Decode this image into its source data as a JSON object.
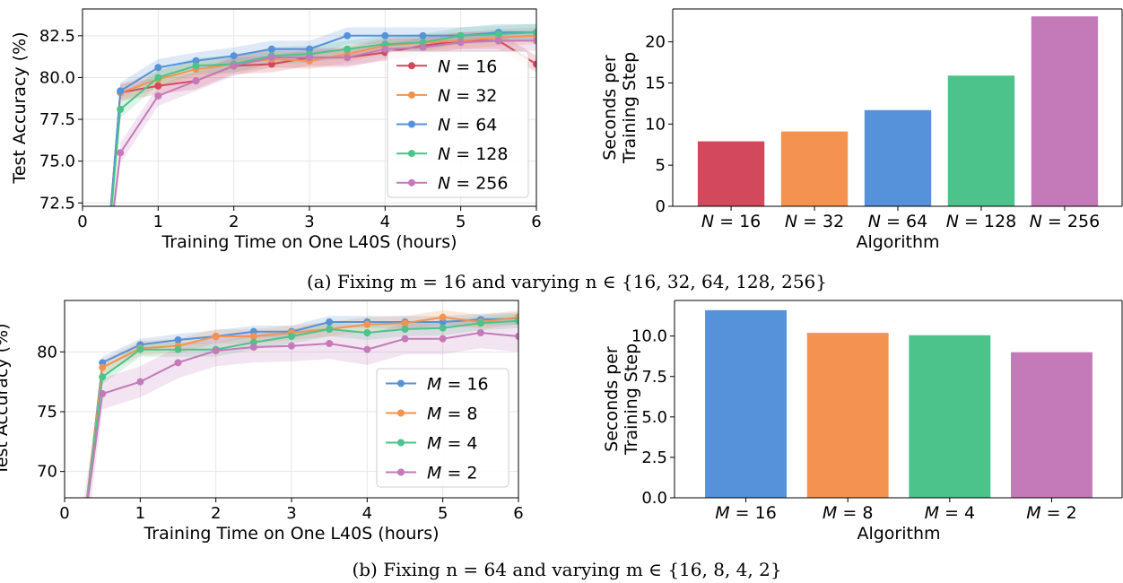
{
  "captions": {
    "a": "(a) Fixing m = 16 and varying n ∈ {16, 32, 64, 128, 256}",
    "b": "(b) Fixing n = 64 and varying m ∈ {16, 8, 4, 2}"
  },
  "chart_data": [
    {
      "id": "a-line",
      "type": "line",
      "xlabel": "Training Time on One L40S (hours)",
      "ylabel": "Test Accuracy (%)",
      "xlim": [
        0,
        6
      ],
      "ylim": [
        72.3,
        84.1
      ],
      "xticks": [
        0,
        1,
        2,
        3,
        4,
        5,
        6
      ],
      "yticks": [
        72.5,
        75.0,
        77.5,
        80.0,
        82.5
      ],
      "ytick_labels": [
        "72.5",
        "75.0",
        "77.5",
        "80.0",
        "82.5"
      ],
      "grid": true,
      "legend": "right",
      "x": [
        0.3,
        0.5,
        1.0,
        1.5,
        2.0,
        2.5,
        3.0,
        3.5,
        4.0,
        4.5,
        5.0,
        5.5,
        6.0
      ],
      "series": [
        {
          "name": "N = 16",
          "color": "#d1495b",
          "values": [
            68.0,
            79.1,
            79.5,
            79.8,
            80.7,
            80.8,
            81.2,
            81.2,
            81.5,
            81.9,
            82.2,
            82.2,
            80.8
          ],
          "band": 0.5
        },
        {
          "name": "N = 32",
          "color": "#f4934f",
          "values": [
            68.0,
            79.1,
            79.9,
            80.5,
            80.8,
            81.1,
            81.0,
            81.4,
            81.9,
            82.1,
            82.2,
            82.4,
            82.5
          ],
          "band": 0.5
        },
        {
          "name": "N = 64",
          "color": "#5592d9",
          "values": [
            68.0,
            79.2,
            80.6,
            81.0,
            81.3,
            81.7,
            81.7,
            82.5,
            82.5,
            82.5,
            82.5,
            82.7,
            82.7
          ],
          "band": 0.5
        },
        {
          "name": "N = 128",
          "color": "#4cc38a",
          "values": [
            68.0,
            78.1,
            80.0,
            80.7,
            80.8,
            81.3,
            81.4,
            81.7,
            82.0,
            82.1,
            82.5,
            82.6,
            82.7
          ],
          "band": 0.5
        },
        {
          "name": "N = 256",
          "color": "#c47ab8",
          "values": [
            68.0,
            75.5,
            78.9,
            79.8,
            80.7,
            81.2,
            81.2,
            81.2,
            81.7,
            81.8,
            82.1,
            82.2,
            82.2
          ],
          "band": 0.6
        }
      ]
    },
    {
      "id": "a-bar",
      "type": "bar",
      "xlabel": "Algorithm",
      "ylabel": [
        "Seconds per",
        "Training Step"
      ],
      "ylim": [
        0,
        24
      ],
      "yticks": [
        0,
        5,
        10,
        15,
        20
      ],
      "ytick_labels": [
        "0",
        "5",
        "10",
        "15",
        "20"
      ],
      "categories": [
        "N = 16",
        "N = 32",
        "N = 64",
        "N = 128",
        "N = 256"
      ],
      "values": [
        7.9,
        9.1,
        11.7,
        15.9,
        23.1
      ],
      "colors": [
        "#d1495b",
        "#f4934f",
        "#5592d9",
        "#4cc38a",
        "#c47ab8"
      ]
    },
    {
      "id": "b-line",
      "type": "line",
      "xlabel": "Training Time on One L40S (hours)",
      "ylabel": "Test Accuracy (%)",
      "xlim": [
        0,
        6
      ],
      "ylim": [
        67.8,
        84.3
      ],
      "xticks": [
        0,
        1,
        2,
        3,
        4,
        5,
        6
      ],
      "yticks": [
        70,
        75,
        80
      ],
      "ytick_labels": [
        "70",
        "75",
        "80"
      ],
      "grid": true,
      "legend": "lower-right",
      "x": [
        0.25,
        0.5,
        1.0,
        1.5,
        2.0,
        2.5,
        3.0,
        3.5,
        4.0,
        4.5,
        5.0,
        5.5,
        6.0
      ],
      "series": [
        {
          "name": "M = 16",
          "color": "#5592d9",
          "values": [
            65.0,
            79.1,
            80.6,
            81.0,
            81.3,
            81.7,
            81.7,
            82.5,
            82.5,
            82.5,
            82.5,
            82.7,
            82.8
          ],
          "band": 0.5
        },
        {
          "name": "M = 8",
          "color": "#f4934f",
          "values": [
            65.0,
            78.7,
            80.3,
            80.5,
            81.3,
            81.3,
            81.6,
            81.9,
            82.3,
            82.4,
            82.9,
            82.5,
            82.9
          ],
          "band": 0.6
        },
        {
          "name": "M = 4",
          "color": "#4cc38a",
          "values": [
            65.0,
            77.9,
            80.2,
            80.2,
            80.2,
            80.8,
            81.3,
            81.9,
            81.6,
            81.9,
            82.0,
            82.4,
            82.6
          ],
          "band": 0.6
        },
        {
          "name": "M = 2",
          "color": "#c47ab8",
          "values": [
            65.0,
            76.5,
            77.5,
            79.1,
            80.1,
            80.4,
            80.5,
            80.7,
            80.2,
            81.1,
            81.1,
            81.6,
            81.3
          ],
          "band": 1.3
        }
      ]
    },
    {
      "id": "b-bar",
      "type": "bar",
      "xlabel": "Algorithm",
      "ylabel": [
        "Seconds per",
        "Training Step"
      ],
      "ylim": [
        0,
        12.2
      ],
      "yticks": [
        0,
        2.5,
        5,
        7.5,
        10
      ],
      "ytick_labels": [
        "0.0",
        "2.5",
        "5.0",
        "7.5",
        "10.0"
      ],
      "categories": [
        "M = 16",
        "M = 8",
        "M = 4",
        "M = 2"
      ],
      "values": [
        11.6,
        10.2,
        10.05,
        9.0
      ],
      "colors": [
        "#5592d9",
        "#f4934f",
        "#4cc38a",
        "#c47ab8"
      ]
    }
  ]
}
